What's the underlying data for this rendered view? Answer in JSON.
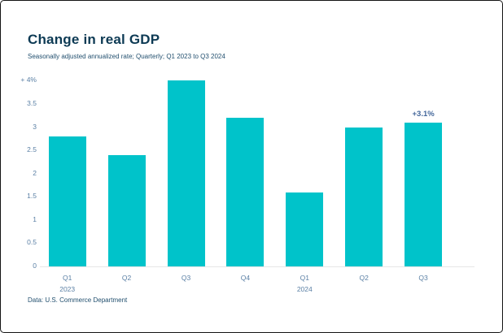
{
  "header": {
    "title": "Change in real GDP",
    "subtitle": "Seasonally adjusted annualized rate; Quarterly; Q1 2023 to Q3 2024"
  },
  "chart_data": {
    "type": "bar",
    "title": "Change in real GDP",
    "subtitle": "Seasonally adjusted annualized rate; Quarterly; Q1 2023 to Q3 2024",
    "categories": [
      "Q1 2023",
      "Q2 2023",
      "Q3 2023",
      "Q4 2023",
      "Q1 2024",
      "Q2 2024",
      "Q3 2024"
    ],
    "x_tick_labels": [
      {
        "quarter": "Q1",
        "year": "2023"
      },
      {
        "quarter": "Q2"
      },
      {
        "quarter": "Q3"
      },
      {
        "quarter": "Q4"
      },
      {
        "quarter": "Q1",
        "year": "2024"
      },
      {
        "quarter": "Q2"
      },
      {
        "quarter": "Q3"
      }
    ],
    "values": [
      2.8,
      2.4,
      4.0,
      3.2,
      1.6,
      3.0,
      3.1
    ],
    "unit": "%",
    "ylim": [
      0,
      4
    ],
    "y_ticks": [
      {
        "label": "+ 4%",
        "value": 4
      },
      {
        "label": "3.5",
        "value": 3.5
      },
      {
        "label": "3",
        "value": 3
      },
      {
        "label": "2.5",
        "value": 2.5
      },
      {
        "label": "2",
        "value": 2
      },
      {
        "label": "1.5",
        "value": 1.5
      },
      {
        "label": "1",
        "value": 1
      },
      {
        "label": "0.5",
        "value": 0.5
      },
      {
        "label": "0",
        "value": 0
      }
    ],
    "grid": false,
    "legend": false,
    "annotation": {
      "text": "+3.1%",
      "target": "Q3 2024",
      "bar_index": 6
    },
    "bar_color": "#00c3ca"
  },
  "footer": {
    "source": "Data: U.S. Commerce Department"
  },
  "colors": {
    "bar": "#00c3ca",
    "title": "#0d3a54",
    "subtitle": "#23506f",
    "axis_label": "#5b80a5",
    "annotation": "#44679b",
    "baseline": "#e6e6e6",
    "card_border": "#141414"
  }
}
